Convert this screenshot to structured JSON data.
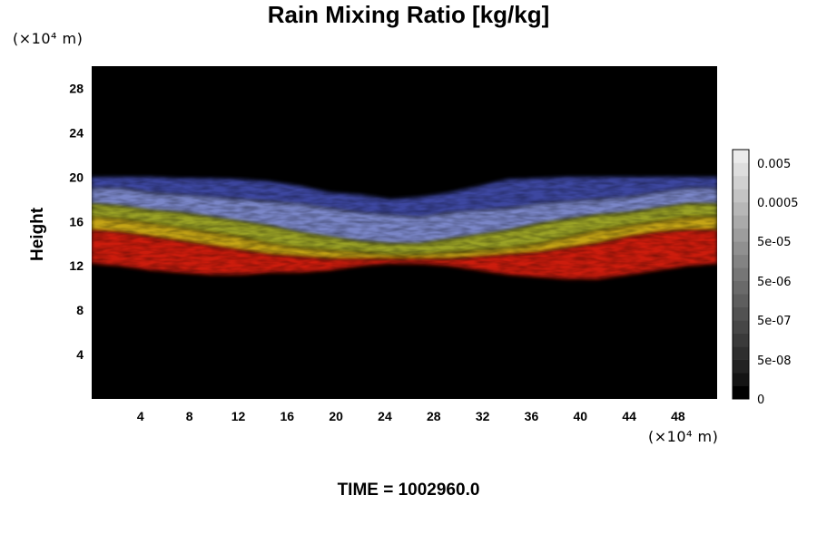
{
  "chart_data": {
    "type": "heatmap",
    "title": "Rain Mixing Ratio [kg/kg]",
    "ylabel": "Height",
    "x_unit": "(×10⁴ m)",
    "y_unit": "(×10⁴ m)",
    "xlim": [
      0,
      51.2
    ],
    "ylim": [
      0,
      30
    ],
    "x_ticks": [
      4,
      8,
      12,
      16,
      20,
      24,
      28,
      32,
      36,
      40,
      44,
      48
    ],
    "y_ticks": [
      4,
      8,
      12,
      16,
      20,
      24,
      28
    ],
    "colorbar": {
      "tick_labels": [
        "0.005",
        "0.0005",
        "5e-05",
        "5e-06",
        "5e-07",
        "5e-08",
        "0"
      ],
      "colors": [
        "#000000",
        "#141414",
        "#222222",
        "#2e2e2e",
        "#3a3a3a",
        "#464646",
        "#525252",
        "#5e5e5e",
        "#6a6a6a",
        "#767676",
        "#838383",
        "#909090",
        "#9d9d9d",
        "#aaaaaa",
        "#b7b7b7",
        "#c4c4c4",
        "#d1d1d1",
        "#dedede",
        "#ebebeb"
      ]
    },
    "bands": [
      {
        "name_color": "#3c46a0",
        "bottom": [
          19,
          19,
          18.6,
          18.4,
          18.2,
          18.0,
          17.8,
          17.6,
          17.2,
          16.8,
          16.6,
          16.4,
          16.8,
          17.0,
          17.2,
          17.6,
          17.8,
          18.0,
          18.2,
          18.6,
          19,
          19
        ],
        "top": [
          20,
          20,
          20,
          19.9,
          19.9,
          19.8,
          19.6,
          19.2,
          18.6,
          18.4,
          18.0,
          18.2,
          18.6,
          19.2,
          19.8,
          19.9,
          20,
          20,
          20,
          20,
          20,
          20
        ]
      },
      {
        "name_color": "#7a86c8",
        "bottom": [
          17.6,
          17.4,
          17.0,
          16.8,
          16.4,
          16.0,
          15.6,
          15.0,
          14.6,
          14.2,
          14.0,
          14.0,
          14.4,
          14.8,
          15.2,
          15.8,
          16.2,
          16.6,
          16.8,
          17.2,
          17.6,
          17.6
        ],
        "top": [
          19,
          19,
          18.6,
          18.4,
          18.2,
          18.0,
          17.8,
          17.6,
          17.2,
          16.8,
          16.6,
          16.4,
          16.8,
          17.0,
          17.2,
          17.6,
          17.8,
          18.0,
          18.2,
          18.6,
          19,
          19
        ]
      },
      {
        "name_color": "#9aa228",
        "bottom": [
          16.4,
          16.2,
          15.8,
          15.4,
          15.0,
          14.6,
          14.0,
          13.6,
          13.4,
          13.2,
          13.0,
          13.0,
          13.2,
          13.4,
          13.6,
          14.0,
          14.6,
          15.2,
          15.6,
          16.0,
          16.4,
          16.4
        ],
        "top": [
          17.6,
          17.4,
          17.0,
          16.8,
          16.4,
          16.0,
          15.6,
          15.0,
          14.6,
          14.2,
          14.0,
          14.0,
          14.4,
          14.8,
          15.2,
          15.8,
          16.2,
          16.6,
          16.8,
          17.2,
          17.6,
          17.6
        ]
      },
      {
        "name_color": "#c4a416",
        "bottom": [
          15.2,
          15.0,
          14.6,
          14.2,
          13.8,
          13.4,
          13.0,
          12.8,
          12.6,
          12.6,
          12.6,
          12.6,
          12.6,
          12.8,
          13.0,
          13.2,
          13.6,
          14.0,
          14.6,
          15.0,
          15.2,
          15.2
        ],
        "top": [
          16.4,
          16.2,
          15.8,
          15.4,
          15.0,
          14.6,
          14.0,
          13.6,
          13.4,
          13.2,
          13.0,
          13.0,
          13.2,
          13.4,
          13.6,
          14.0,
          14.6,
          15.2,
          15.6,
          16.0,
          16.4,
          16.4
        ]
      },
      {
        "name_color": "#cc1a10",
        "bottom": [
          12.2,
          12.0,
          11.6,
          11.4,
          11.2,
          11.2,
          11.4,
          11.4,
          11.6,
          12.0,
          12.2,
          12.2,
          12.0,
          11.6,
          11.2,
          11.0,
          10.8,
          10.8,
          11.2,
          11.6,
          12.0,
          12.2
        ],
        "top": [
          15.2,
          15.0,
          14.6,
          14.2,
          13.8,
          13.4,
          13.0,
          12.8,
          12.6,
          12.6,
          12.6,
          12.6,
          12.6,
          12.8,
          13.0,
          13.2,
          13.6,
          14.0,
          14.6,
          15.0,
          15.2,
          15.2
        ]
      }
    ],
    "band_x": [
      0,
      2.4,
      4.9,
      7.3,
      9.8,
      12.2,
      14.6,
      17.1,
      19.5,
      22.0,
      24.4,
      26.8,
      29.3,
      31.7,
      34.1,
      36.6,
      39.0,
      41.4,
      43.9,
      46.3,
      48.8,
      51.2
    ],
    "background": "#000000"
  },
  "time_label": "TIME = 1002960.0"
}
